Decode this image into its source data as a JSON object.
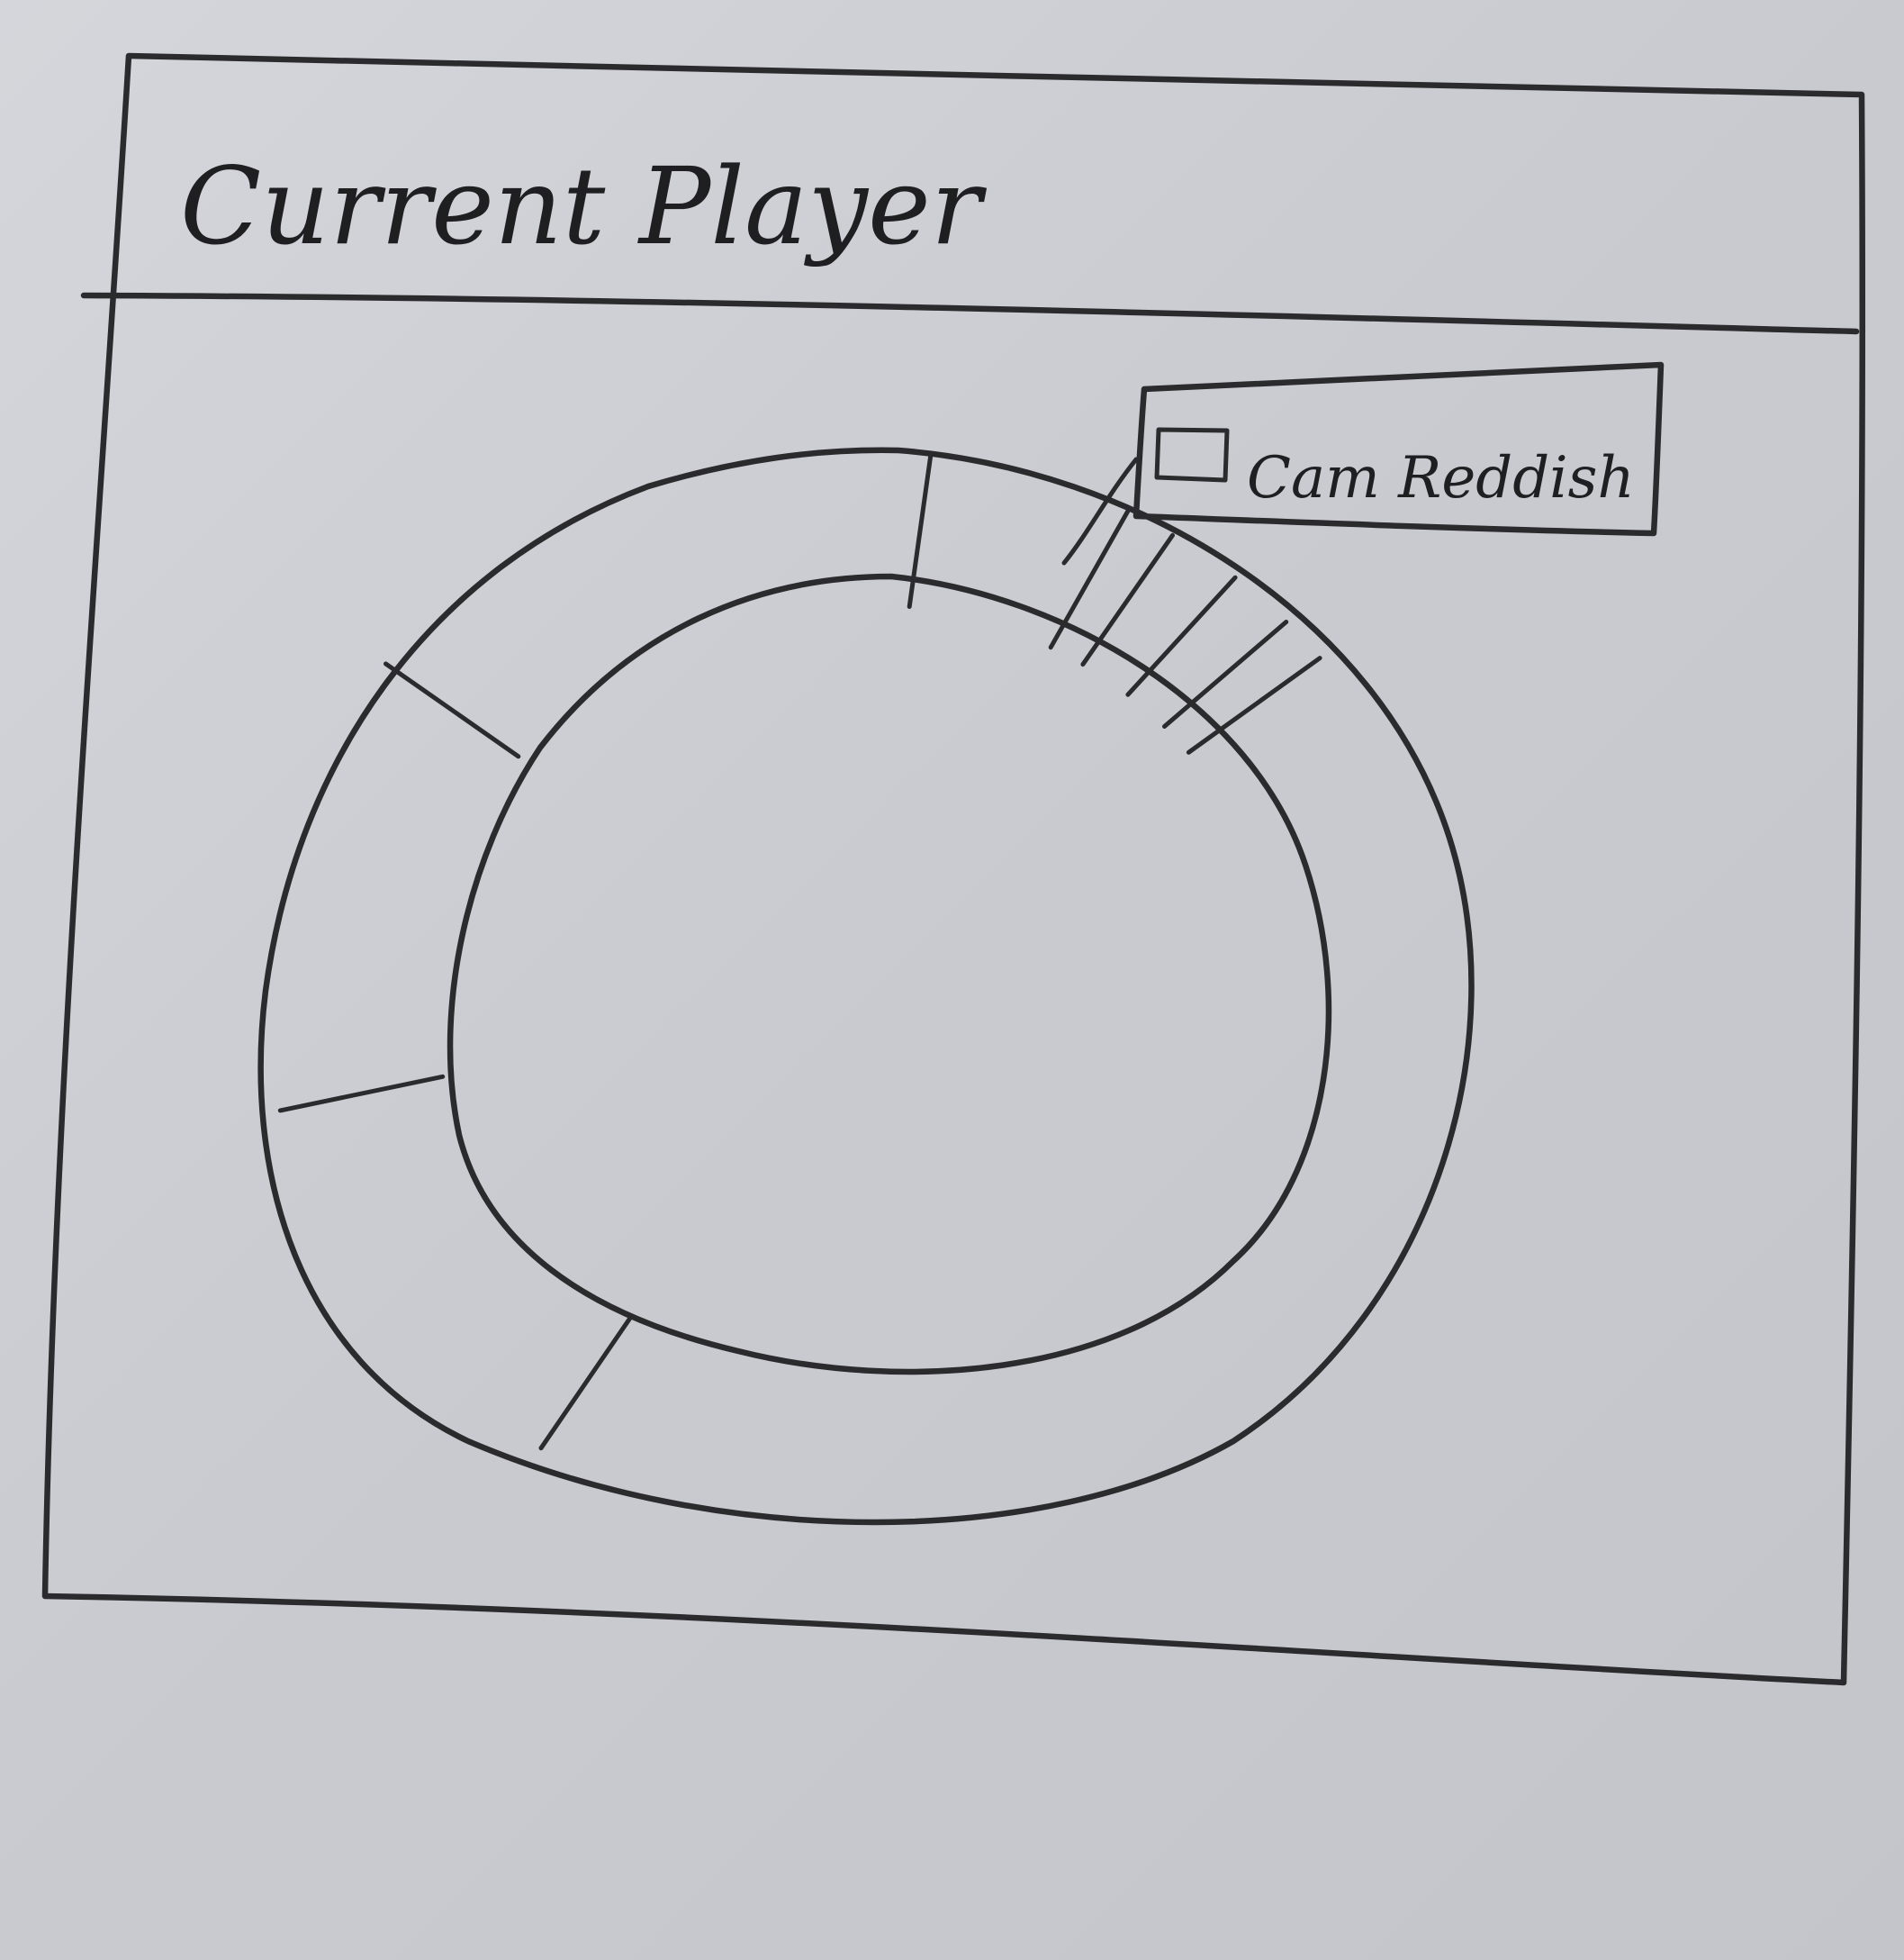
{
  "window": {
    "title": "Current Player"
  },
  "legend": {
    "entry_label": "Cam Reddish"
  },
  "chart_data": {
    "type": "pie",
    "style": "donut",
    "title": "Current Player",
    "legend": [
      "Cam Reddish"
    ],
    "legend_placement": "top-right",
    "slices": [
      {
        "value": 44.5
      },
      {
        "value": 12.5
      },
      {
        "value": 13.9
      },
      {
        "value": 16.7
      },
      {
        "value": 5.6
      },
      {
        "value": 1.4
      },
      {
        "value": 2.1
      },
      {
        "value": 1.9
      },
      {
        "value": 1.4
      }
    ]
  }
}
